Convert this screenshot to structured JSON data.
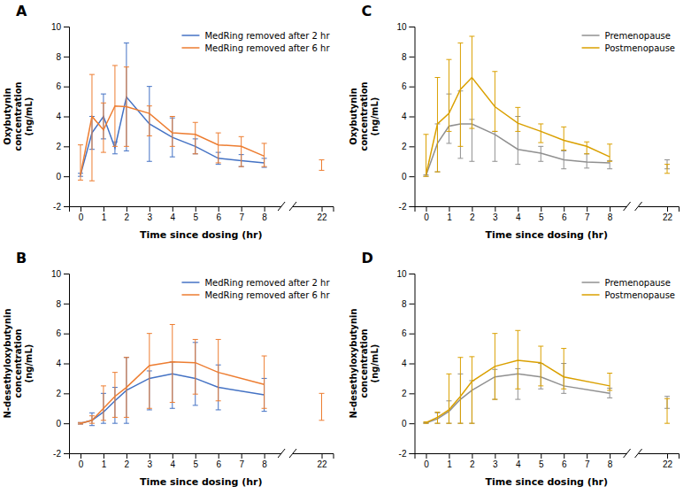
{
  "chart_data": [
    {
      "type": "line",
      "title": "A",
      "x_label": "Time since dosing (hr)",
      "y_label": "Oxybutynin\nconcentration\n(ng/mL)",
      "x": [
        0,
        0.5,
        1,
        1.5,
        2,
        3,
        4,
        5,
        6,
        7,
        8,
        22
      ],
      "series": [
        {
          "name": "MedRing removed after 2 hr",
          "color": "#4472C4",
          "values": [
            0.1,
            2.9,
            4.0,
            1.9,
            5.3,
            3.5,
            2.6,
            2.0,
            1.2,
            1.05,
            0.9,
            null
          ],
          "error_lo": [
            0.1,
            1.1,
            1.5,
            0.4,
            3.6,
            2.5,
            1.3,
            0.5,
            0.4,
            0.4,
            0.3,
            null
          ],
          "error_hi": [
            0.1,
            1.1,
            1.5,
            0.4,
            3.6,
            2.5,
            1.3,
            0.5,
            0.4,
            0.4,
            0.3,
            null
          ]
        },
        {
          "name": "MedRing removed after 6 hr",
          "color": "#ED7D31",
          "values": [
            0.1,
            4.0,
            3.1,
            4.7,
            4.65,
            4.2,
            2.9,
            2.8,
            2.1,
            2.0,
            1.35,
            0.75
          ],
          "error_lo": [
            0.35,
            4.3,
            1.5,
            2.7,
            2.65,
            1.5,
            0.9,
            1.3,
            1.2,
            1.35,
            0.7,
            0.35
          ],
          "error_hi": [
            2.0,
            2.8,
            1.8,
            2.7,
            2.65,
            0.5,
            1.1,
            0.8,
            0.8,
            0.65,
            0.85,
            0.35
          ]
        }
      ],
      "xlim": [
        -0.5,
        22.5
      ],
      "xticks": [
        0,
        1,
        2,
        3,
        4,
        5,
        6,
        7,
        8,
        22
      ],
      "ylim": [
        -2,
        10
      ],
      "yticks": [
        -2,
        0,
        2,
        4,
        6,
        8,
        10
      ],
      "legend": "upper right",
      "grid": false
    },
    {
      "type": "line",
      "title": "B",
      "x_label": "Time since dosing (hr)",
      "y_label": "N-desethyloxybutynin\nconcentration\n(ng/mL)",
      "x": [
        0,
        0.5,
        1,
        1.5,
        2,
        3,
        4,
        5,
        6,
        8,
        22
      ],
      "series": [
        {
          "name": "MedRing removed after 2 hr",
          "color": "#4472C4",
          "values": [
            0.0,
            0.2,
            0.75,
            1.5,
            2.2,
            3.0,
            3.3,
            3.0,
            2.4,
            1.9,
            null
          ],
          "error_lo": [
            0.05,
            0.35,
            0.75,
            1.5,
            2.2,
            2.1,
            2.3,
            1.8,
            1.5,
            1.1,
            null
          ],
          "error_hi": [
            0.05,
            0.5,
            1.25,
            0.9,
            2.2,
            0.5,
            0.8,
            2.4,
            1.5,
            1.1,
            null
          ]
        },
        {
          "name": "MedRing removed after 6 hr",
          "color": "#ED7D31",
          "values": [
            0.0,
            0.2,
            1.0,
            1.8,
            2.4,
            3.85,
            4.1,
            4.05,
            3.4,
            2.6,
            1.5
          ],
          "error_lo": [
            0.05,
            0.2,
            0.8,
            1.4,
            2.0,
            2.85,
            2.7,
            2.1,
            1.9,
            1.6,
            1.3
          ],
          "error_hi": [
            0.05,
            0.3,
            1.5,
            1.6,
            2.0,
            2.15,
            2.5,
            1.55,
            2.2,
            1.9,
            0.5
          ]
        }
      ],
      "xlim": [
        -0.5,
        22.5
      ],
      "xticks": [
        0,
        1,
        2,
        3,
        4,
        5,
        6,
        7,
        8,
        22
      ],
      "ylim": [
        -2,
        10
      ],
      "yticks": [
        -2,
        0,
        2,
        4,
        6,
        8,
        10
      ],
      "legend": "upper right",
      "grid": false
    },
    {
      "type": "line",
      "title": "C",
      "x_label": "Time since dosing (hr)",
      "y_label": "Oxybutynin\nconcentration\n(ng/mL)",
      "x": [
        0,
        0.5,
        1,
        1.5,
        2,
        3,
        4,
        5,
        6,
        7,
        8,
        22
      ],
      "series": [
        {
          "name": "Premenopause",
          "color": "#909090",
          "values": [
            0.05,
            2.2,
            3.35,
            3.5,
            3.5,
            2.8,
            1.8,
            1.55,
            1.1,
            0.95,
            0.9,
            0.8
          ],
          "error_lo": [
            0.05,
            1.9,
            1.15,
            2.3,
            2.5,
            1.8,
            1.0,
            0.55,
            0.6,
            0.4,
            0.4,
            0.3
          ],
          "error_hi": [
            0.05,
            1.3,
            2.15,
            2.2,
            0.3,
            0.2,
            2.2,
            0.45,
            0.6,
            0.55,
            0.15,
            0.3
          ]
        },
        {
          "name": "Postmenopause",
          "color": "#DAA000",
          "values": [
            0.1,
            3.5,
            4.2,
            5.8,
            6.6,
            4.65,
            3.55,
            3.0,
            2.4,
            2.0,
            1.3,
            0.5
          ],
          "error_lo": [
            0.1,
            3.2,
            1.2,
            3.8,
            3.4,
            1.65,
            0.55,
            0.75,
            0.65,
            0.5,
            0.3,
            0.3
          ],
          "error_hi": [
            2.7,
            3.1,
            3.6,
            3.1,
            2.75,
            2.35,
            1.05,
            0.5,
            0.9,
            0.3,
            0.85,
            0.3
          ]
        }
      ],
      "xlim": [
        -0.5,
        22.5
      ],
      "xticks": [
        0,
        1,
        2,
        3,
        4,
        5,
        6,
        7,
        8,
        22
      ],
      "ylim": [
        -2,
        10
      ],
      "yticks": [
        -2,
        0,
        2,
        4,
        6,
        8,
        10
      ],
      "legend": "upper right",
      "grid": false
    },
    {
      "type": "line",
      "title": "D",
      "x_label": "Time since dosing (hr)",
      "y_label": "N-desethyloxybutynin\nconcentration\n(ng/mL)",
      "x": [
        0,
        0.5,
        1,
        1.5,
        2,
        3,
        4,
        5,
        6,
        8,
        22
      ],
      "series": [
        {
          "name": "Premenopause",
          "color": "#909090",
          "values": [
            0.02,
            0.3,
            0.8,
            1.6,
            2.2,
            3.1,
            3.3,
            3.1,
            2.5,
            2.0,
            1.4
          ],
          "error_lo": [
            0.02,
            0.3,
            0.8,
            1.6,
            2.2,
            1.5,
            1.7,
            0.8,
            0.5,
            0.3,
            0.4
          ],
          "error_hi": [
            0.02,
            0.4,
            0.7,
            1.7,
            0.65,
            0.5,
            0.35,
            0.9,
            1.5,
            0.35,
            0.4
          ]
        },
        {
          "name": "Postmenopause",
          "color": "#DAA000",
          "values": [
            0.05,
            0.4,
            0.9,
            1.8,
            2.8,
            3.8,
            4.2,
            4.05,
            3.1,
            2.5,
            1.1
          ],
          "error_lo": [
            0.05,
            0.4,
            0.9,
            1.8,
            2.8,
            2.2,
            1.9,
            1.55,
            0.8,
            0.3,
            1.1
          ],
          "error_hi": [
            0.05,
            0.35,
            2.4,
            2.6,
            1.65,
            2.2,
            2.0,
            1.1,
            1.9,
            0.85,
            0.55
          ]
        }
      ],
      "xlim": [
        -0.5,
        22.5
      ],
      "xticks": [
        0,
        1,
        2,
        3,
        4,
        5,
        6,
        7,
        8,
        22
      ],
      "ylim": [
        -2,
        10
      ],
      "yticks": [
        -2,
        0,
        2,
        4,
        6,
        8,
        10
      ],
      "legend": "upper right",
      "grid": false
    }
  ]
}
